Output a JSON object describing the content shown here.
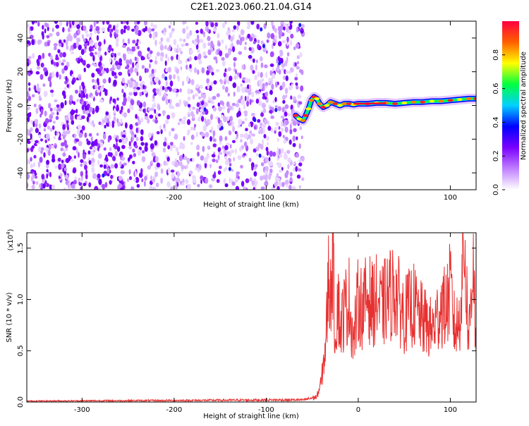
{
  "title": "C2E1.2023.060.21.04.G14",
  "chart_data": [
    {
      "type": "heatmap",
      "xlabel": "Height of straight line (km)",
      "ylabel": "Frequency (Hz)",
      "xlim": [
        -360,
        128
      ],
      "ylim": [
        -50,
        50
      ],
      "x_ticks": [
        -300,
        -200,
        -100,
        0,
        100
      ],
      "y_ticks": [
        -40,
        -20,
        0,
        20,
        40
      ],
      "noise_region_x": [
        -360,
        -60
      ],
      "signal_trace": {
        "x": [
          -68,
          -64,
          -60,
          -57,
          -54,
          -51,
          -48,
          -45,
          -42,
          -38,
          -34,
          -30,
          -25,
          -20,
          -15,
          -10,
          -5,
          0,
          10,
          20,
          30,
          40,
          50,
          60,
          70,
          80,
          90,
          100,
          110,
          120,
          128
        ],
        "y": [
          -6,
          -8,
          -9,
          -6,
          -2,
          3,
          5,
          4,
          1,
          -1,
          0,
          2,
          1,
          0,
          1,
          1,
          0.5,
          1,
          1,
          1.5,
          1.5,
          1,
          1.5,
          2,
          2,
          2.5,
          2.5,
          3,
          3.5,
          4,
          4
        ]
      },
      "colorbar": {
        "label": "Normalized spectral amplitude",
        "range": [
          0.0,
          1.0
        ],
        "ticks": [
          0.0,
          0.2,
          0.4,
          0.6,
          0.8
        ],
        "colors": [
          "#ffffff",
          "#c080ff",
          "#7a00ff",
          "#0000ff",
          "#00d0ff",
          "#00ff40",
          "#ffff00",
          "#ff6000",
          "#ff0040"
        ]
      }
    },
    {
      "type": "line",
      "xlabel": "Height of straight line (km)",
      "ylabel": "SNR (10 * v/v)",
      "y_multiplier": "(x10",
      "y_multiplier_exp": "4",
      "y_multiplier_close": ")",
      "xlim": [
        -360,
        128
      ],
      "ylim": [
        0,
        1.65
      ],
      "x_ticks": [
        -300,
        -200,
        -100,
        0,
        100
      ],
      "y_ticks": [
        0.0,
        0.5,
        1.0,
        1.5
      ],
      "y_tick_labels": [
        "0.0",
        "0.5",
        "1.0",
        "1.5"
      ],
      "color": "#e83030",
      "series": [
        {
          "x": [
            -360,
            -300,
            -200,
            -100,
            -60,
            -45,
            -40,
            -35,
            -32,
            -30,
            -28,
            -25,
            -22,
            -20,
            -15,
            -10,
            -5,
            0,
            5,
            10,
            15,
            20,
            25,
            30,
            35,
            40,
            45,
            50,
            55,
            60,
            65,
            70,
            75,
            80,
            85,
            90,
            95,
            100,
            105,
            110,
            115,
            120,
            125,
            128
          ],
          "y": [
            0.01,
            0.012,
            0.015,
            0.02,
            0.02,
            0.05,
            0.2,
            0.6,
            1.3,
            1.0,
            1.55,
            0.6,
            1.1,
            0.7,
            0.9,
            1.0,
            0.6,
            1.0,
            0.9,
            1.05,
            0.95,
            1.0,
            0.9,
            1.0,
            1.05,
            1.1,
            0.95,
            0.85,
            0.9,
            0.95,
            0.85,
            0.8,
            0.75,
            0.7,
            0.8,
            0.95,
            0.9,
            1.1,
            0.7,
            0.8,
            1.6,
            0.6,
            1.5,
            0.4
          ]
        }
      ]
    }
  ]
}
